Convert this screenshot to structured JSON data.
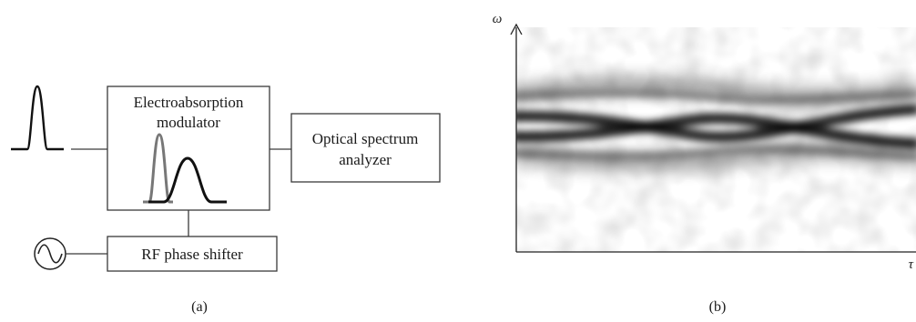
{
  "panel_a": {
    "modulator_line1": "Electroabsorption",
    "modulator_line2": "modulator",
    "analyzer_line1": "Optical spectrum",
    "analyzer_line2": "analyzer",
    "shifter_label": "RF phase shifter",
    "caption": "(a)",
    "icons": {
      "source": "rf-oscillator-sine-icon"
    },
    "colors": {
      "pulse_before": "#777777",
      "pulse_after": "#111111",
      "line": "#3a3a3a"
    }
  },
  "panel_b": {
    "y_axis_label": "ω",
    "x_axis_label": "τ",
    "caption": "(b)",
    "colors": {
      "trace": "#000000",
      "background": "#ffffff"
    }
  }
}
